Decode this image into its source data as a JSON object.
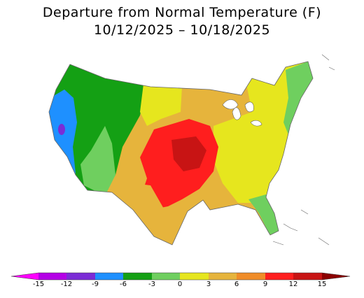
{
  "title": {
    "line1": "Departure from Normal Temperature (F)",
    "line2": "10/12/2025 – 10/18/2025"
  },
  "legend": {
    "ticks": [
      "-15",
      "-12",
      "-9",
      "-6",
      "-3",
      "0",
      "3",
      "6",
      "9",
      "12",
      "15"
    ],
    "bins": [
      {
        "range": "< -15",
        "color": "#ff00ff"
      },
      {
        "range": "-15 to -12",
        "color": "#b400e6"
      },
      {
        "range": "-12 to -9",
        "color": "#7b2cd6"
      },
      {
        "range": "-9 to -6",
        "color": "#1e90ff"
      },
      {
        "range": "-6 to -3",
        "color": "#14a014"
      },
      {
        "range": "-3 to 0",
        "color": "#6fcf5f"
      },
      {
        "range": "0 to 3",
        "color": "#e6e61e"
      },
      {
        "range": "3 to 6",
        "color": "#e6b43c"
      },
      {
        "range": "6 to 9",
        "color": "#f08c28"
      },
      {
        "range": "9 to 12",
        "color": "#ff1e1e"
      },
      {
        "range": "12 to 15",
        "color": "#c81414"
      },
      {
        "range": "> 15",
        "color": "#8b0000"
      }
    ]
  },
  "map": {
    "region": "contiguous-united-states",
    "regions": [
      {
        "name": "west-coast",
        "anomaly_class": "-9 to -6",
        "color": "#1e90ff"
      },
      {
        "name": "pacific-northwest",
        "anomaly_class": "-6 to -3",
        "color": "#14a014"
      },
      {
        "name": "northern-rockies",
        "anomaly_class": "-3 to 0",
        "color": "#6fcf5f"
      },
      {
        "name": "northern-plains",
        "anomaly_class": "3 to 6",
        "color": "#e6b43c"
      },
      {
        "name": "central-plains",
        "anomaly_class": "9 to 12",
        "color": "#ff1e1e"
      },
      {
        "name": "central-core",
        "anomaly_class": "12 to 15",
        "color": "#c81414"
      },
      {
        "name": "texas",
        "anomaly_class": "3 to 6",
        "color": "#e6b43c"
      },
      {
        "name": "southeast",
        "anomaly_class": "0 to 3",
        "color": "#e6e61e"
      },
      {
        "name": "northeast",
        "anomaly_class": "0 to 3",
        "color": "#e6e61e"
      },
      {
        "name": "new-england-coast",
        "anomaly_class": "-3 to 0",
        "color": "#6fcf5f"
      },
      {
        "name": "florida",
        "anomaly_class": "-3 to 0",
        "color": "#6fcf5f"
      }
    ]
  }
}
